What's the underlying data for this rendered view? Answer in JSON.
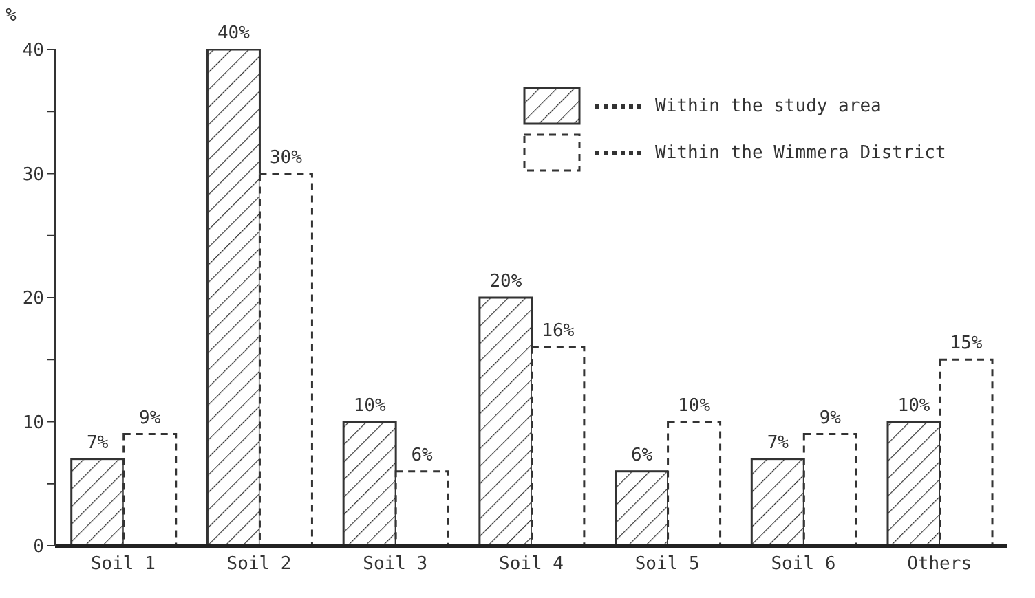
{
  "chart_data": {
    "type": "bar",
    "ylabel": "%",
    "categories": [
      "Soil 1",
      "Soil 2",
      "Soil 3",
      "Soil 4",
      "Soil 5",
      "Soil 6",
      "Others"
    ],
    "series": [
      {
        "name": "Within the study area",
        "color": "#333333",
        "line_style": "solid",
        "values": [
          7,
          40,
          10,
          20,
          6,
          7,
          10
        ],
        "value_labels": [
          "7%",
          "40%",
          "10%",
          "20%",
          "6%",
          "7%",
          "10%"
        ]
      },
      {
        "name": "Within the Wimmera District",
        "color": "#333333",
        "line_style": "dashed",
        "values": [
          9,
          30,
          6,
          16,
          10,
          9,
          15
        ],
        "value_labels": [
          "9%",
          "30%",
          "6%",
          "16%",
          "10%",
          "9%",
          "15%"
        ]
      }
    ],
    "ylim": [
      0,
      40
    ],
    "yticks": [
      0,
      {
        "value": 5,
        "label": null
      },
      10,
      {
        "value": 15,
        "label": null
      },
      20,
      {
        "value": 25,
        "label": null
      },
      30,
      {
        "value": 35,
        "label": null
      },
      40
    ],
    "grid": false,
    "legend": "top right"
  }
}
